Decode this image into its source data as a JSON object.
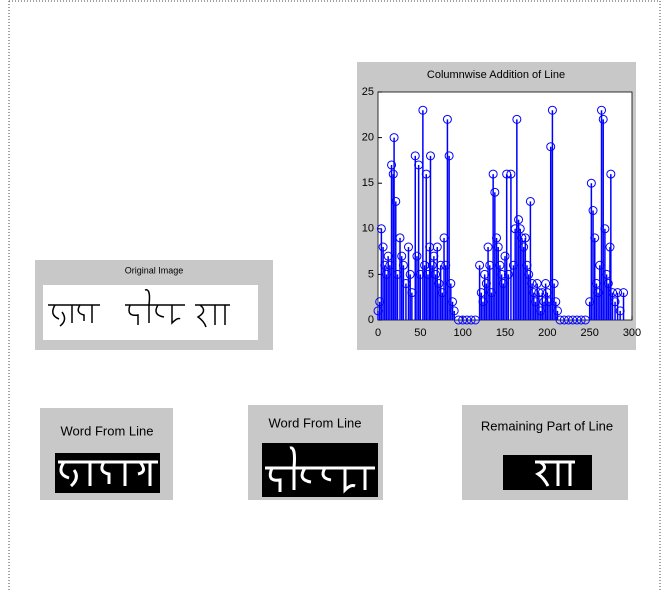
{
  "original_panel": {
    "title": "Original Image"
  },
  "word_panels": [
    {
      "title": "Word From Line"
    },
    {
      "title": "Word From Line"
    },
    {
      "title": "Remaining  Part of Line"
    }
  ],
  "chart_data": {
    "type": "stem",
    "title": "Columnwise Addition of Line",
    "color": "#0000ff",
    "x": [
      0,
      2,
      4,
      6,
      8,
      10,
      12,
      14,
      16,
      18,
      19,
      21,
      23,
      26,
      28,
      30,
      33,
      36,
      38,
      40,
      44,
      46,
      48,
      50,
      53,
      55,
      57,
      59,
      61,
      62,
      64,
      66,
      68,
      70,
      72,
      74,
      76,
      78,
      80,
      82,
      84,
      86,
      88,
      90,
      95,
      100,
      105,
      110,
      115,
      120,
      122,
      124,
      126,
      128,
      130,
      132,
      134,
      136,
      138,
      140,
      142,
      144,
      146,
      148,
      150,
      152,
      154,
      157,
      160,
      162,
      164,
      166,
      168,
      170,
      172,
      174,
      176,
      178,
      180,
      182,
      184,
      186,
      188,
      190,
      192,
      194,
      196,
      198,
      200,
      202,
      204,
      206,
      208,
      210,
      212,
      215,
      220,
      225,
      230,
      235,
      240,
      245,
      250,
      252,
      254,
      256,
      258,
      260,
      262,
      264,
      266,
      268,
      270,
      272,
      274,
      275,
      277,
      280,
      283,
      286,
      290
    ],
    "values": [
      1,
      2,
      10,
      8,
      6,
      5,
      7,
      6,
      17,
      16,
      20,
      13,
      5,
      9,
      7,
      6,
      4,
      8,
      5,
      3,
      18,
      7,
      17,
      5,
      23,
      6,
      16,
      5,
      8,
      18,
      6,
      7,
      5,
      8,
      4,
      6,
      3,
      9,
      6,
      22,
      18,
      4,
      2,
      1,
      0,
      0,
      0,
      0,
      0,
      6,
      3,
      2,
      5,
      4,
      8,
      6,
      3,
      16,
      14,
      9,
      8,
      6,
      5,
      4,
      7,
      16,
      5,
      16,
      6,
      10,
      22,
      11,
      10,
      9,
      8,
      9,
      6,
      5,
      13,
      4,
      3,
      2,
      4,
      3,
      1,
      3,
      2,
      4,
      3,
      2,
      19,
      23,
      4,
      2,
      1,
      0,
      0,
      0,
      0,
      0,
      0,
      0,
      2,
      15,
      12,
      9,
      4,
      3,
      6,
      23,
      22,
      10,
      5,
      4,
      8,
      16,
      3,
      2,
      3,
      1,
      3
    ],
    "xlim": [
      0,
      300
    ],
    "ylim": [
      0,
      25
    ],
    "xticks": [
      0,
      50,
      100,
      150,
      200,
      250,
      300
    ],
    "yticks": [
      0,
      5,
      10,
      15,
      20,
      25
    ]
  }
}
